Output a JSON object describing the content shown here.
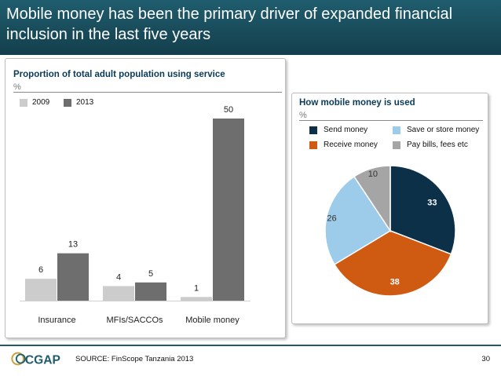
{
  "title": "Mobile money has been the primary driver of expanded financial inclusion in the last five years",
  "chart_data": [
    {
      "type": "bar",
      "title": "Proportion of total adult population using service",
      "unit": "%",
      "categories": [
        "Insurance",
        "MFIs/SACCOs",
        "Mobile money"
      ],
      "series": [
        {
          "name": "2009",
          "values": [
            6,
            4,
            1
          ],
          "color": "#cccccc"
        },
        {
          "name": "2013",
          "values": [
            13,
            5,
            50
          ],
          "color": "#6e6e6e"
        }
      ],
      "ylim": [
        0,
        50
      ]
    },
    {
      "type": "pie",
      "title": "How mobile money is used",
      "unit": "%",
      "slices": [
        {
          "label": "Send money",
          "value": 33,
          "color": "#0d3049",
          "label_color": "#ffffff"
        },
        {
          "label": "Receive money",
          "value": 38,
          "color": "#cf5a12",
          "label_color": "#ffffff"
        },
        {
          "label": "Save or store money",
          "value": 26,
          "color": "#9dcbea",
          "label_color": "#333333"
        },
        {
          "label": "Pay bills, fees etc",
          "value": 10,
          "color": "#a5a5a5",
          "label_color": "#333333"
        }
      ],
      "legend_order": [
        0,
        2,
        1,
        3
      ]
    }
  ],
  "footer": {
    "logo_text": "CGAP",
    "source": "SOURCE: FinScope Tanzania 2013",
    "page_number": "30"
  }
}
